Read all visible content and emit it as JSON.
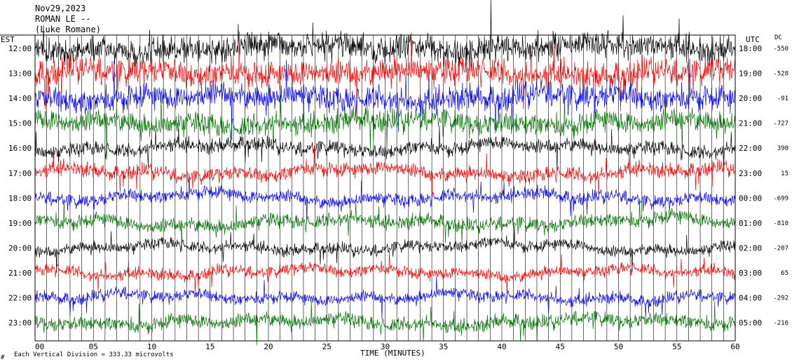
{
  "header": {
    "date": "Nov29,2023",
    "station": "ROMAN LE --",
    "network": "(Luke Romane)"
  },
  "axes": {
    "left_zone": "EST",
    "right_zone": "UTC",
    "dc_label": "DC",
    "xlabel": "TIME (MINUTES)",
    "footer_note": "Each Vertical Division = 333.33 microvolts",
    "footer_mark": "#"
  },
  "chart_data": {
    "type": "line",
    "title": "",
    "xlabel": "TIME (MINUTES)",
    "xlim": [
      0,
      60
    ],
    "x_ticks": [
      "00",
      "05",
      "10",
      "15",
      "20",
      "25",
      "30",
      "35",
      "40",
      "45",
      "50",
      "55",
      "60"
    ],
    "grid": "vertical lines each minute",
    "color_cycle": [
      "#000000",
      "#ff0000",
      "#0000ff",
      "#007000"
    ],
    "rows": [
      {
        "local": "12:00",
        "utc": "18:00",
        "dc": "-550",
        "color": "#000000",
        "amplitude": 1.0
      },
      {
        "local": "13:00",
        "utc": "19:00",
        "dc": "-528",
        "color": "#ff0000",
        "amplitude": 1.0
      },
      {
        "local": "14:00",
        "utc": "20:00",
        "dc": "-91",
        "color": "#0000ff",
        "amplitude": 0.95
      },
      {
        "local": "15:00",
        "utc": "21:00",
        "dc": "-727",
        "color": "#007000",
        "amplitude": 0.85
      },
      {
        "local": "16:00",
        "utc": "22:00",
        "dc": "390",
        "color": "#000000",
        "amplitude": 0.55
      },
      {
        "local": "17:00",
        "utc": "23:00",
        "dc": "15",
        "color": "#ff0000",
        "amplitude": 0.55
      },
      {
        "local": "18:00",
        "utc": "00:00",
        "dc": "-699",
        "color": "#0000ff",
        "amplitude": 0.5
      },
      {
        "local": "19:00",
        "utc": "01:00",
        "dc": "-810",
        "color": "#007000",
        "amplitude": 0.55
      },
      {
        "local": "20:00",
        "utc": "02:00",
        "dc": "-207",
        "color": "#000000",
        "amplitude": 0.45
      },
      {
        "local": "21:00",
        "utc": "03:00",
        "dc": "65",
        "color": "#ff0000",
        "amplitude": 0.45
      },
      {
        "local": "22:00",
        "utc": "04:00",
        "dc": "-292",
        "color": "#0000ff",
        "amplitude": 0.45
      },
      {
        "local": "23:00",
        "utc": "05:00",
        "dc": "-216",
        "color": "#007000",
        "amplitude": 0.55
      }
    ]
  }
}
